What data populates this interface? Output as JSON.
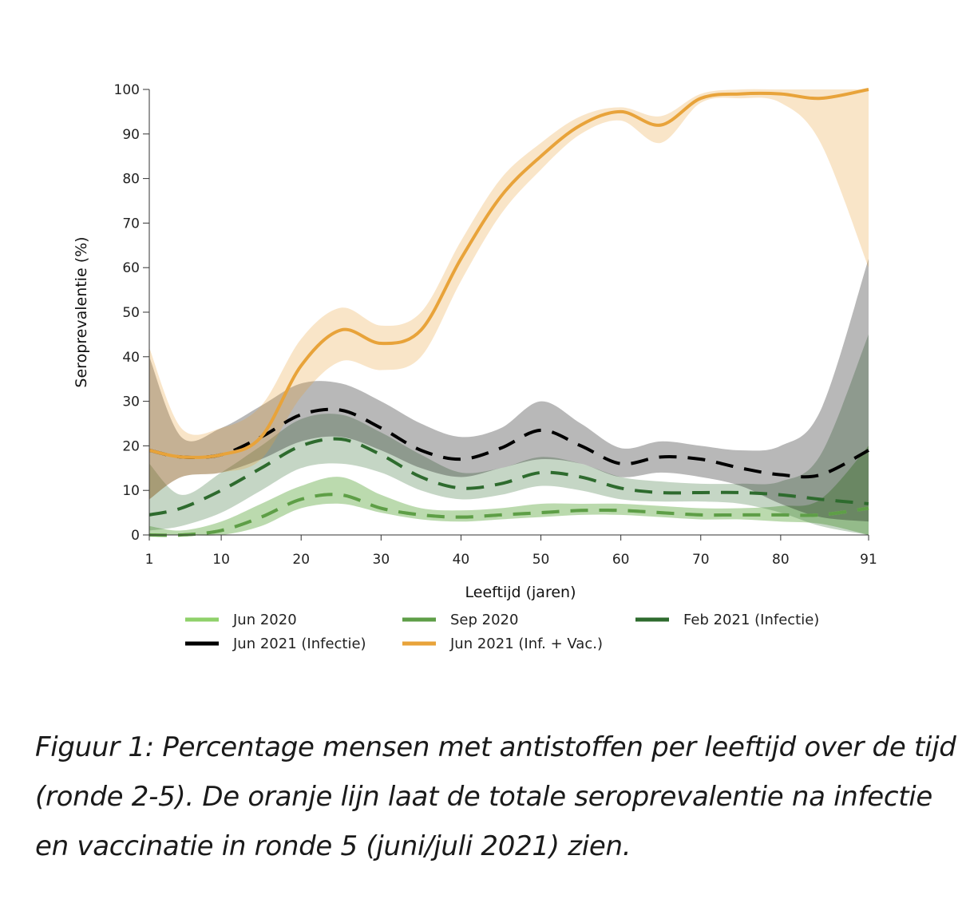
{
  "chart_data": {
    "type": "line",
    "title": "",
    "xlabel": "Leeftijd (jaren)",
    "ylabel": "Seroprevalentie (%)",
    "xlim": [
      1,
      91
    ],
    "ylim": [
      0,
      100
    ],
    "xticks": [
      1,
      10,
      20,
      30,
      40,
      50,
      60,
      70,
      80,
      91
    ],
    "yticks": [
      0,
      10,
      20,
      30,
      40,
      50,
      60,
      70,
      80,
      90,
      100
    ],
    "grid": false,
    "legend_position": "bottom",
    "series": [
      {
        "name": "Jun 2020",
        "color": "#8fd16a",
        "style": "dashed",
        "x": [
          1,
          5,
          10,
          15,
          20,
          25,
          30,
          35,
          40,
          45,
          50,
          55,
          60,
          65,
          70,
          75,
          80,
          85,
          91
        ],
        "y": [
          0,
          0,
          1,
          4,
          8,
          9,
          6,
          4.5,
          4,
          4.5,
          5,
          5.5,
          5.5,
          5,
          4.5,
          4.5,
          4.5,
          4.5,
          6
        ],
        "lower": [
          0,
          0,
          0,
          2,
          6,
          7,
          5,
          3.5,
          3,
          3.5,
          4,
          4.5,
          4.5,
          4,
          3.5,
          3.5,
          3,
          2.5,
          0
        ],
        "upper": [
          2,
          1,
          3,
          7,
          11,
          13,
          9,
          6,
          5.5,
          6,
          7,
          7,
          7,
          6.5,
          6,
          6,
          6.5,
          8,
          20
        ]
      },
      {
        "name": "Sep 2020",
        "color": "#5e9e47",
        "style": "dashed",
        "x": [
          1,
          5,
          10,
          15,
          20,
          25,
          30,
          35,
          40,
          45,
          50,
          55,
          60,
          65,
          70,
          75,
          80,
          85,
          91
        ],
        "y": [
          0,
          0,
          1,
          4,
          8,
          9,
          6,
          4.5,
          4,
          4.5,
          5,
          5.5,
          5.5,
          5,
          4.5,
          4.5,
          4.5,
          4.5,
          6
        ],
        "lower": [
          0,
          0,
          0,
          2,
          6,
          7,
          5,
          3.5,
          3,
          3.5,
          4,
          4.5,
          4.5,
          4,
          3.5,
          3.5,
          3,
          2.5,
          0
        ],
        "upper": [
          2,
          1,
          3,
          7,
          11,
          13,
          9,
          6,
          5.5,
          6,
          7,
          7,
          7,
          6.5,
          6,
          6,
          6.5,
          8,
          20
        ]
      },
      {
        "name": "Feb 2021 (Infectie)",
        "color": "#2e6b2e",
        "style": "dashed",
        "x": [
          1,
          5,
          10,
          15,
          20,
          25,
          30,
          35,
          40,
          45,
          50,
          55,
          60,
          65,
          70,
          75,
          80,
          85,
          91
        ],
        "y": [
          4.5,
          6,
          10,
          15,
          20,
          21.5,
          18,
          13,
          10.5,
          11.5,
          14,
          13,
          10.5,
          9.5,
          9.5,
          9.5,
          9,
          8,
          7
        ],
        "lower": [
          1,
          2,
          5,
          10,
          15,
          16,
          14,
          10,
          8,
          9,
          11,
          10,
          8,
          7.5,
          7.5,
          7,
          5,
          2,
          0
        ],
        "upper": [
          16,
          9,
          14,
          20,
          26,
          27,
          23,
          18,
          14,
          15,
          17.5,
          16,
          13,
          12,
          11.5,
          11.5,
          12,
          18,
          45
        ]
      },
      {
        "name": "Jun 2021 (Infectie)",
        "color": "#000000",
        "style": "dashed",
        "x": [
          1,
          5,
          10,
          15,
          20,
          25,
          30,
          35,
          40,
          45,
          50,
          55,
          60,
          65,
          70,
          75,
          80,
          85,
          91
        ],
        "y": [
          19,
          17.5,
          18,
          22,
          27,
          28,
          24,
          19,
          17,
          19.5,
          23.5,
          20,
          16,
          17.5,
          17,
          15,
          13.5,
          13.5,
          19
        ],
        "lower": [
          8,
          13,
          14,
          17,
          21,
          22,
          19,
          15,
          13,
          15,
          17,
          16,
          13,
          14,
          13,
          11,
          7,
          4,
          3
        ],
        "upper": [
          40,
          22,
          24,
          29,
          34,
          34,
          30,
          25,
          22,
          24,
          30,
          25,
          19.5,
          21,
          20,
          19,
          20,
          28,
          62
        ]
      },
      {
        "name": "Jun 2021 (Inf. + Vac.)",
        "color": "#e8a33a",
        "style": "solid",
        "x": [
          1,
          5,
          10,
          15,
          20,
          25,
          30,
          35,
          40,
          45,
          50,
          55,
          60,
          65,
          70,
          75,
          80,
          85,
          91
        ],
        "y": [
          19,
          17.5,
          18,
          22,
          38,
          46,
          43,
          46,
          62,
          76,
          85,
          92,
          95,
          92,
          98,
          99,
          99,
          98,
          100
        ],
        "lower": [
          8,
          13,
          14,
          17,
          31,
          39,
          37,
          40,
          57,
          72,
          82,
          90,
          93,
          88,
          97,
          98,
          97,
          88,
          60
        ],
        "upper": [
          42,
          24,
          24,
          29,
          44,
          51,
          47,
          50,
          66,
          80,
          88,
          94,
          96,
          94,
          99,
          100,
          100,
          100,
          100
        ]
      }
    ]
  },
  "legend": {
    "items": [
      {
        "label": "Jun 2020",
        "color": "#8fd16a",
        "style": "solid"
      },
      {
        "label": "Sep 2020",
        "color": "#5e9e47",
        "style": "solid"
      },
      {
        "label": "Feb 2021 (Infectie)",
        "color": "#2e6b2e",
        "style": "solid"
      },
      {
        "label": "Jun 2021 (Infectie)",
        "color": "#000000",
        "style": "solid"
      },
      {
        "label": "Jun 2021 (Inf. + Vac.)",
        "color": "#e8a33a",
        "style": "solid"
      }
    ]
  },
  "caption": {
    "line1": "Figuur 1: Percentage mensen met antistoffen per leeftijd over de tijd",
    "line2": "(ronde 2-5). De oranje lijn laat de totale seroprevalentie na infectie",
    "line3": "en vaccinatie in ronde 5 (juni/juli 2021) zien."
  }
}
